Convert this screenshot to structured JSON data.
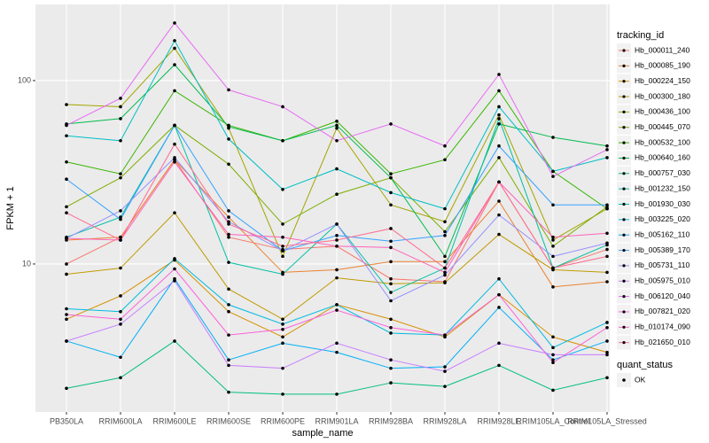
{
  "chart_data": {
    "type": "line",
    "x_label": "sample_name",
    "y_label": "FPKM + 1",
    "legend_title": "tracking_id",
    "log_y": true,
    "grid": true,
    "legend_position": "right",
    "point_color": "#000000",
    "point_legend": {
      "title": "quant_status",
      "labels": [
        "OK"
      ]
    },
    "categories": [
      "PB350LA",
      "RRIM600LA",
      "RRIM600LE",
      "RRIM600SE",
      "RRIM600PE",
      "RRIM901LA",
      "RRIM928BA",
      "RRIM928LA",
      "RRIM928LE",
      "RRIM105LA_Control",
      "RRIM105LA_Stressed"
    ],
    "ylim": [
      1.56,
      260
    ],
    "yticks": [
      10,
      100
    ],
    "series": [
      {
        "name": "Hb_000011_240",
        "color": "#F8766D",
        "values": [
          10,
          14,
          37,
          14,
          12,
          12.5,
          8.3,
          8,
          28,
          9.5,
          12
        ]
      },
      {
        "name": "Hb_000085_190",
        "color": "#EA8331",
        "values": [
          13.5,
          14,
          37,
          18,
          9,
          9.3,
          10.3,
          10.3,
          22,
          7.5,
          8
        ]
      },
      {
        "name": "Hb_000224_150",
        "color": "#D89000",
        "values": [
          5,
          6.7,
          10.5,
          5.5,
          4,
          6,
          5,
          4,
          6.8,
          4,
          3.3
        ]
      },
      {
        "name": "Hb_000300_180",
        "color": "#C09B00",
        "values": [
          8.8,
          9.5,
          19,
          7.3,
          5,
          8.4,
          7.8,
          7.9,
          14.5,
          9.3,
          9
        ]
      },
      {
        "name": "Hb_000436_100",
        "color": "#A3A500",
        "values": [
          74,
          72,
          150,
          55,
          11,
          55,
          21,
          17,
          65,
          13.5,
          20
        ]
      },
      {
        "name": "Hb_000445_070",
        "color": "#7CAE00",
        "values": [
          20.5,
          29.5,
          57,
          35,
          16.5,
          24,
          29.5,
          15,
          38,
          12.5,
          20.5
        ]
      },
      {
        "name": "Hb_000532_100",
        "color": "#39B600",
        "values": [
          36,
          31,
          88,
          57,
          47,
          60,
          31,
          37,
          88,
          32,
          20
        ]
      },
      {
        "name": "Hb_000640_160",
        "color": "#00BB4E",
        "values": [
          58,
          62,
          122,
          56,
          47,
          57,
          29.5,
          11,
          58,
          49,
          44
        ]
      },
      {
        "name": "Hb_000757_030",
        "color": "#00BF7D",
        "values": [
          2.1,
          2.4,
          3.8,
          2.0,
          1.95,
          1.95,
          2.25,
          2.15,
          2.8,
          2.05,
          2.4
        ]
      },
      {
        "name": "Hb_001232_150",
        "color": "#00C1A3",
        "values": [
          14,
          18,
          57,
          10.2,
          8.8,
          16.5,
          7,
          9.5,
          62,
          9.5,
          12.7
        ]
      },
      {
        "name": "Hb_001930_030",
        "color": "#00BFC4",
        "values": [
          50,
          47,
          165,
          48,
          25.5,
          33,
          24.5,
          20,
          72,
          32,
          38
        ]
      },
      {
        "name": "Hb_003225_020",
        "color": "#00BAE0",
        "values": [
          5.7,
          5.5,
          10.7,
          6,
          4.7,
          6,
          4.2,
          4.1,
          8.3,
          3.5,
          4.8
        ]
      },
      {
        "name": "Hb_005162_110",
        "color": "#00B0F6",
        "values": [
          3.8,
          3.1,
          8.3,
          3.0,
          3.7,
          3.3,
          2.7,
          2.75,
          5.8,
          3.0,
          3.8
        ]
      },
      {
        "name": "Hb_005389_170",
        "color": "#35A2FF",
        "values": [
          29,
          17.5,
          57,
          19.5,
          11.8,
          14.3,
          13.3,
          14.3,
          44,
          21,
          21
        ]
      },
      {
        "name": "Hb_005731_110",
        "color": "#9590FF",
        "values": [
          13.8,
          19.5,
          38,
          17,
          11.8,
          16.5,
          6.3,
          8.7,
          18.5,
          11,
          13
        ]
      },
      {
        "name": "Hb_005975_010",
        "color": "#C77CFF",
        "values": [
          3.8,
          4.7,
          8.1,
          2.8,
          2.7,
          3.7,
          3.0,
          2.6,
          3.7,
          3.2,
          3.2
        ]
      },
      {
        "name": "Hb_006120_040",
        "color": "#E76BF3",
        "values": [
          57,
          80,
          206,
          89,
          72,
          47,
          58,
          44,
          108,
          30,
          42
        ]
      },
      {
        "name": "Hb_007821_020",
        "color": "#FA62DB",
        "values": [
          5.3,
          5,
          9.4,
          4.1,
          4.4,
          5.6,
          4.5,
          4.1,
          6.8,
          2.9,
          4.5
        ]
      },
      {
        "name": "Hb_010174_090",
        "color": "#FF62BC",
        "values": [
          13.8,
          13.5,
          36,
          14.5,
          14,
          12.5,
          12.3,
          9,
          28,
          14,
          14.7
        ]
      },
      {
        "name": "Hb_021650_010",
        "color": "#FF6C91",
        "values": [
          19,
          13.5,
          45,
          16.5,
          12.5,
          13.5,
          15.6,
          9.5,
          28,
          9.5,
          11
        ]
      }
    ]
  }
}
